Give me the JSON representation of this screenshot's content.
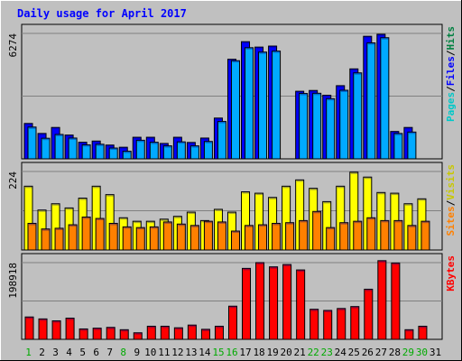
{
  "chart_data": [
    {
      "type": "bar",
      "title": "Daily usage for April 2017",
      "panel": "hits-files-pages",
      "y_tick_label": "6274",
      "ylim": [
        0,
        6274
      ],
      "legend": [
        "Pages",
        "Files",
        "Hits"
      ],
      "legend_separator": "/",
      "categories": [
        "1",
        "2",
        "3",
        "4",
        "5",
        "6",
        "7",
        "8",
        "9",
        "10",
        "11",
        "12",
        "13",
        "14",
        "15",
        "16",
        "17",
        "18",
        "19",
        "20",
        "21",
        "22",
        "23",
        "24",
        "25",
        "26",
        "27",
        "28",
        "29",
        "30",
        "31"
      ],
      "weekend_days": [
        "1",
        "8",
        "15",
        "16",
        "22",
        "23",
        "29",
        "30"
      ],
      "series": [
        {
          "name": "Hits",
          "color": "#0000ff",
          "values": [
            1770,
            1270,
            1570,
            1190,
            830,
            890,
            690,
            580,
            1080,
            1080,
            770,
            1080,
            820,
            1040,
            2040,
            4980,
            5860,
            5590,
            5640,
            0,
            3380,
            3420,
            3180,
            3660,
            4500,
            6130,
            6230,
            1370,
            1570,
            0,
            0
          ]
        },
        {
          "name": "Files",
          "color": "#00aaff",
          "values": [
            1590,
            1030,
            1220,
            1040,
            700,
            730,
            540,
            380,
            930,
            830,
            650,
            850,
            650,
            870,
            1870,
            4910,
            5560,
            5340,
            5390,
            0,
            3270,
            3280,
            3010,
            3430,
            4300,
            5800,
            6060,
            1270,
            1340,
            0,
            0
          ]
        },
        {
          "name": "Pages",
          "color": "#00e0ff",
          "values": [
            0,
            0,
            0,
            0,
            0,
            0,
            0,
            0,
            0,
            0,
            0,
            0,
            0,
            0,
            0,
            0,
            0,
            0,
            0,
            0,
            0,
            0,
            0,
            0,
            0,
            0,
            0,
            0,
            0,
            0,
            0
          ]
        }
      ]
    },
    {
      "type": "bar",
      "panel": "visits-sites",
      "y_tick_label": "224",
      "ylim": [
        0,
        224
      ],
      "legend": [
        "Sites",
        "Visits"
      ],
      "legend_separator": "/",
      "categories": [
        "1",
        "2",
        "3",
        "4",
        "5",
        "6",
        "7",
        "8",
        "9",
        "10",
        "11",
        "12",
        "13",
        "14",
        "15",
        "16",
        "17",
        "18",
        "19",
        "20",
        "21",
        "22",
        "23",
        "24",
        "25",
        "26",
        "27",
        "28",
        "29",
        "30",
        "31"
      ],
      "series": [
        {
          "name": "Visits",
          "color": "#ffff00",
          "values": [
            182,
            114,
            132,
            120,
            148,
            182,
            158,
            92,
            82,
            82,
            88,
            96,
            108,
            84,
            116,
            108,
            166,
            162,
            150,
            182,
            200,
            176,
            138,
            182,
            222,
            208,
            164,
            162,
            132,
            146,
            0
          ]
        },
        {
          "name": "Sites",
          "color": "#ff8000",
          "values": [
            76,
            60,
            62,
            72,
            94,
            90,
            76,
            66,
            64,
            66,
            80,
            74,
            70,
            82,
            80,
            54,
            70,
            72,
            76,
            78,
            84,
            110,
            64,
            78,
            82,
            92,
            84,
            84,
            70,
            82,
            0
          ]
        }
      ]
    },
    {
      "type": "bar",
      "panel": "kbytes",
      "y_tick_label": "198918",
      "ylim": [
        0,
        198918
      ],
      "legend": [
        "KBytes"
      ],
      "categories": [
        "1",
        "2",
        "3",
        "4",
        "5",
        "6",
        "7",
        "8",
        "9",
        "10",
        "11",
        "12",
        "13",
        "14",
        "15",
        "16",
        "17",
        "18",
        "19",
        "20",
        "21",
        "22",
        "23",
        "24",
        "25",
        "26",
        "27",
        "28",
        "29",
        "30",
        "31"
      ],
      "series": [
        {
          "name": "KBytes",
          "color": "#ff0000",
          "values": [
            58000,
            53000,
            48000,
            55000,
            27000,
            29000,
            31000,
            25000,
            17000,
            34000,
            34000,
            30000,
            37000,
            26000,
            34000,
            86000,
            184000,
            199000,
            188000,
            194000,
            180000,
            78000,
            75000,
            80000,
            85000,
            130000,
            204000,
            198000,
            25000,
            34000,
            0
          ]
        }
      ]
    }
  ]
}
